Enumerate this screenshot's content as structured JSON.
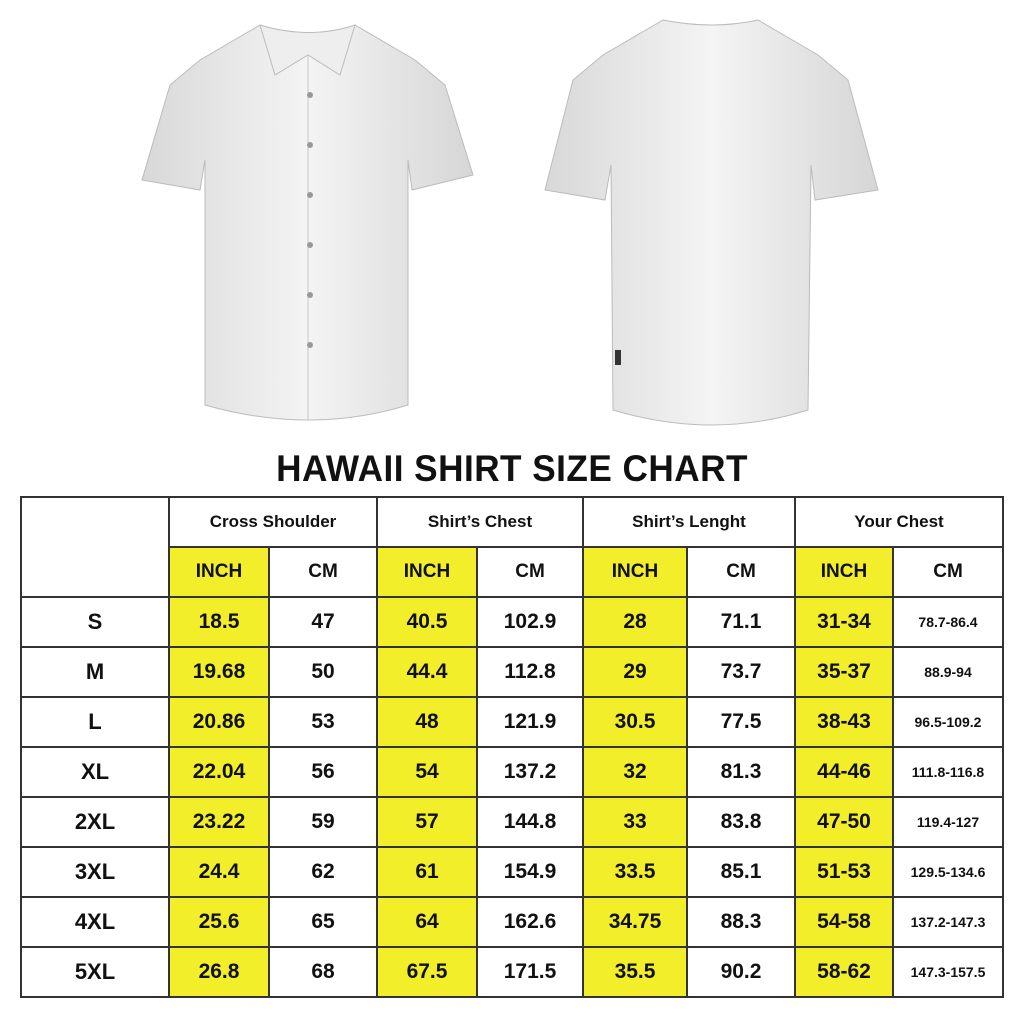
{
  "title": "HAWAII SHIRT SIZE CHART",
  "colors": {
    "inch_highlight": "#f2ee2a",
    "border": "#333333"
  },
  "groups": [
    "Cross Shoulder",
    "Shirt’s Chest",
    "Shirt’s Lenght",
    "Your Chest"
  ],
  "units": {
    "inch": "INCH",
    "cm": "CM"
  },
  "rows": [
    {
      "size": "S",
      "values": [
        "18.5",
        "47",
        "40.5",
        "102.9",
        "28",
        "71.1",
        "31-34",
        "78.7-86.4"
      ]
    },
    {
      "size": "M",
      "values": [
        "19.68",
        "50",
        "44.4",
        "112.8",
        "29",
        "73.7",
        "35-37",
        "88.9-94"
      ]
    },
    {
      "size": "L",
      "values": [
        "20.86",
        "53",
        "48",
        "121.9",
        "30.5",
        "77.5",
        "38-43",
        "96.5-109.2"
      ]
    },
    {
      "size": "XL",
      "values": [
        "22.04",
        "56",
        "54",
        "137.2",
        "32",
        "81.3",
        "44-46",
        "111.8-116.8"
      ]
    },
    {
      "size": "2XL",
      "values": [
        "23.22",
        "59",
        "57",
        "144.8",
        "33",
        "83.8",
        "47-50",
        "119.4-127"
      ]
    },
    {
      "size": "3XL",
      "values": [
        "24.4",
        "62",
        "61",
        "154.9",
        "33.5",
        "85.1",
        "51-53",
        "129.5-134.6"
      ]
    },
    {
      "size": "4XL",
      "values": [
        "25.6",
        "65",
        "64",
        "162.6",
        "34.75",
        "88.3",
        "54-58",
        "137.2-147.3"
      ]
    },
    {
      "size": "5XL",
      "values": [
        "26.8",
        "68",
        "67.5",
        "171.5",
        "35.5",
        "90.2",
        "58-62",
        "147.3-157.5"
      ]
    }
  ]
}
